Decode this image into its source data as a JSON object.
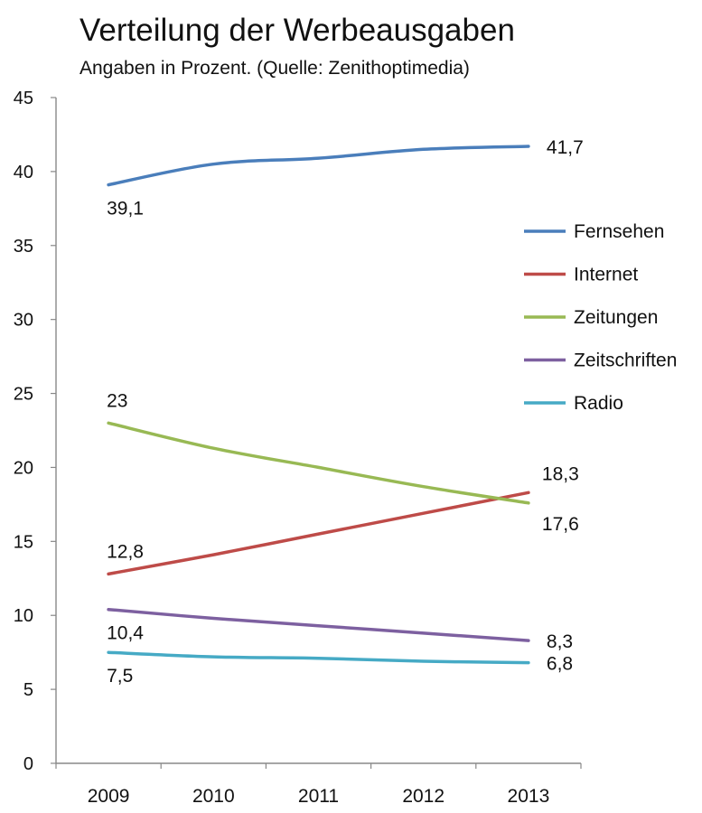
{
  "chart_data": {
    "type": "line",
    "title": "Verteilung der Werbeausgaben",
    "subtitle": "Angaben in Prozent. (Quelle: Zenithoptimedia)",
    "xlabel": "",
    "ylabel": "",
    "x": [
      "2009",
      "2010",
      "2011",
      "2012",
      "2013"
    ],
    "ylim": [
      0,
      45
    ],
    "yticks": [
      0,
      5,
      10,
      15,
      20,
      25,
      30,
      35,
      40,
      45
    ],
    "grid": false,
    "legend_position": "right",
    "series": [
      {
        "name": "Fernsehen",
        "color": "#4a7ebb",
        "values": [
          39.1,
          40.5,
          40.9,
          41.5,
          41.7
        ],
        "labels": [
          {
            "index": 0,
            "text": "39,1",
            "placement": "below"
          },
          {
            "index": 4,
            "text": "41,7",
            "placement": "right"
          }
        ]
      },
      {
        "name": "Internet",
        "color": "#be4b48",
        "values": [
          12.8,
          14.1,
          15.5,
          16.9,
          18.3
        ],
        "labels": [
          {
            "index": 0,
            "text": "12,8",
            "placement": "above"
          },
          {
            "index": 4,
            "text": "18,3",
            "placement": "above-right"
          }
        ]
      },
      {
        "name": "Zeitungen",
        "color": "#98b954",
        "values": [
          23.0,
          21.3,
          20.0,
          18.7,
          17.6
        ],
        "labels": [
          {
            "index": 0,
            "text": "23",
            "placement": "above"
          },
          {
            "index": 4,
            "text": "17,6",
            "placement": "below-right"
          }
        ]
      },
      {
        "name": "Zeitschriften",
        "color": "#7d60a0",
        "values": [
          10.4,
          9.8,
          9.3,
          8.8,
          8.3
        ],
        "labels": [
          {
            "index": 0,
            "text": "10,4",
            "placement": "below"
          },
          {
            "index": 4,
            "text": "8,3",
            "placement": "right"
          }
        ]
      },
      {
        "name": "Radio",
        "color": "#46aac5",
        "values": [
          7.5,
          7.2,
          7.1,
          6.9,
          6.8
        ],
        "labels": [
          {
            "index": 0,
            "text": "7,5",
            "placement": "below"
          },
          {
            "index": 4,
            "text": "6,8",
            "placement": "right"
          }
        ]
      }
    ]
  }
}
